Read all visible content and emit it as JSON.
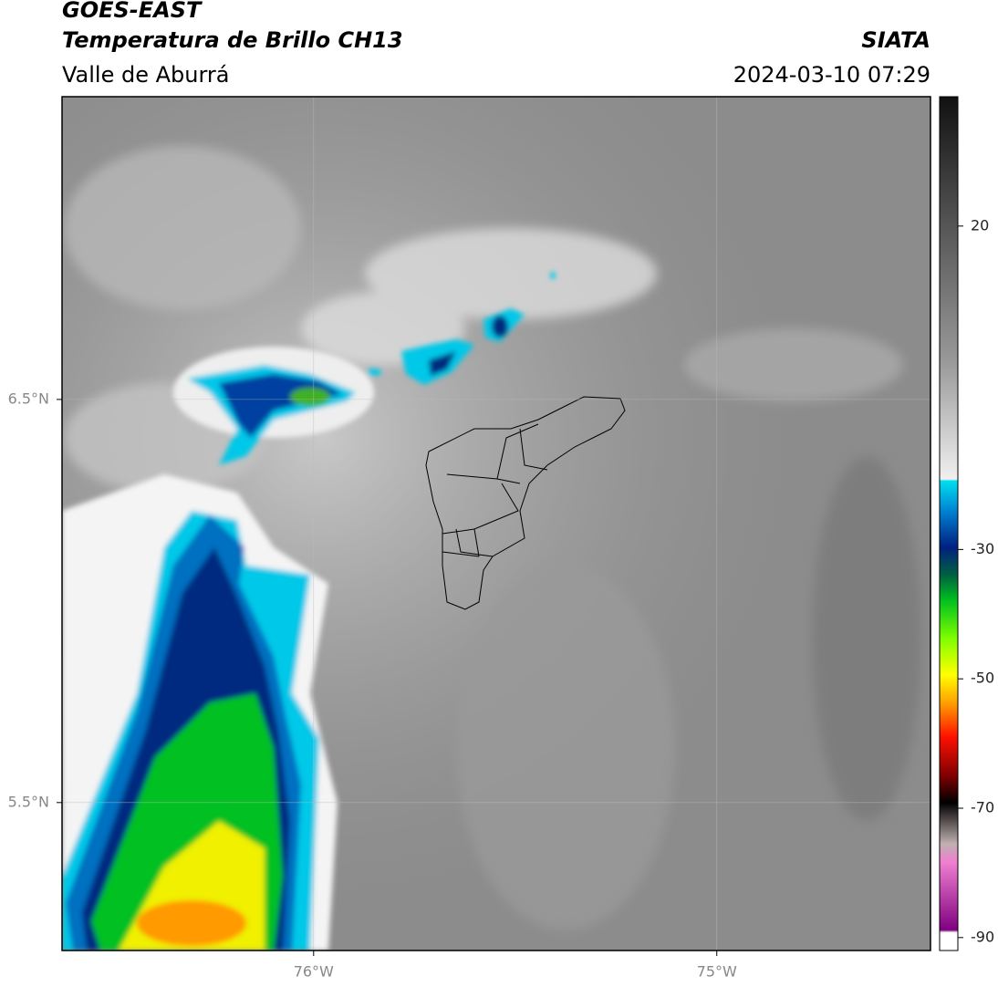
{
  "header": {
    "title": "GOES-EAST",
    "subtitle": "Temperatura de Brillo CH13",
    "region": "Valle de Aburrá",
    "source": "SIATA",
    "datetime": "2024-03-10 07:29"
  },
  "map": {
    "xlim": [
      -76.624,
      -74.47
    ],
    "ylim": [
      5.133,
      7.251
    ],
    "xticks": [
      {
        "value": -76,
        "label": "76°W"
      },
      {
        "value": -75,
        "label": "75°W"
      }
    ],
    "yticks": [
      {
        "value": 6.5,
        "label": "6.5°N"
      },
      {
        "value": 5.5,
        "label": "5.5°N"
      }
    ],
    "grid": true
  },
  "colorbar": {
    "lim": [
      -92,
      40
    ],
    "ticks": [
      20,
      -30,
      -50,
      -70,
      -90
    ]
  }
}
